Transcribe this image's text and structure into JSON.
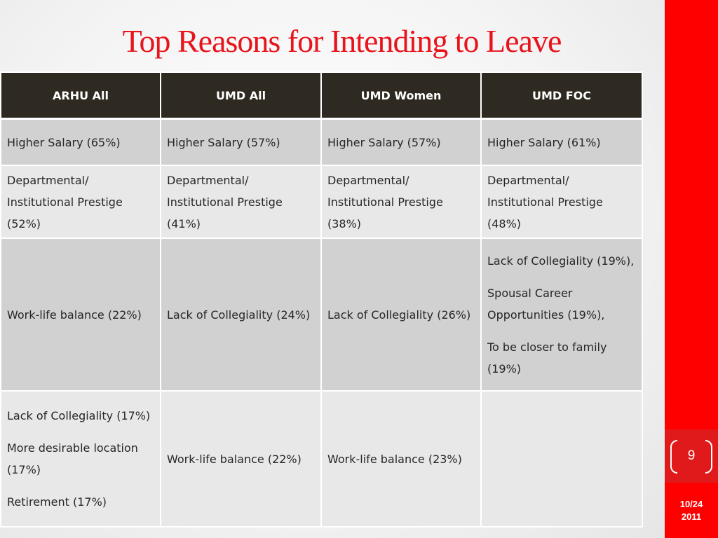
{
  "slide": {
    "title": "Top Reasons for Intending to Leave",
    "page_number": "9",
    "date_line1": "10/24",
    "date_line2": "2011"
  },
  "colors": {
    "title": "#e8141c",
    "sidebar": "#ff0000",
    "header_bg": "#2e2a21",
    "row_dark": "#d1d1d1",
    "row_light": "#e8e8e8"
  },
  "table": {
    "headers": [
      "ARHU All",
      "UMD All",
      "UMD Women",
      "UMD FOC"
    ],
    "rows": [
      [
        [
          "Higher Salary (65%)"
        ],
        [
          "Higher Salary (57%)"
        ],
        [
          "Higher Salary (57%)"
        ],
        [
          "Higher Salary (61%)"
        ]
      ],
      [
        [
          "Departmental/ Institutional  Prestige (52%)"
        ],
        [
          "Departmental/ Institutional  Prestige (41%)"
        ],
        [
          "Departmental/ Institutional  Prestige (38%)"
        ],
        [
          "Departmental/ Institutional  Prestige (48%)"
        ]
      ],
      [
        [
          "Work-life balance (22%)"
        ],
        [
          "Lack of Collegiality (24%)"
        ],
        [
          "Lack of Collegiality (26%)"
        ],
        [
          "Lack of Collegiality (19%),",
          "Spousal Career Opportunities (19%),",
          "To be closer to family (19%)"
        ]
      ],
      [
        [
          "Lack of Collegiality (17%)",
          "More desirable location (17%)",
          "Retirement (17%)"
        ],
        [
          "Work-life balance (22%)"
        ],
        [
          "Work-life balance (23%)"
        ],
        []
      ]
    ]
  }
}
